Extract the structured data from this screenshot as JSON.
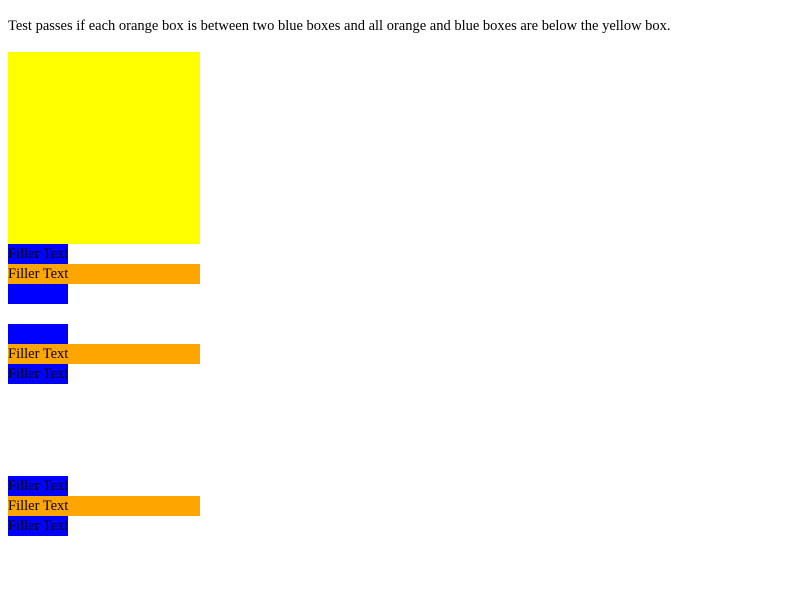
{
  "instruction": "Test passes if each orange box is between two blue boxes and all orange and blue boxes are below the yellow box.",
  "colors": {
    "yellow": "#ffff00",
    "blue": "#0000ff",
    "orange": "#ffa500"
  },
  "groups": [
    {
      "top_blue": "Filler Text",
      "orange": "Filler Text",
      "bottom_blue": ""
    },
    {
      "top_blue": "",
      "orange": "Filler Text",
      "bottom_blue": "Filler Text"
    },
    {
      "top_blue": "Filler Text",
      "orange": "Filler Text",
      "bottom_blue": "Filler Text"
    }
  ]
}
